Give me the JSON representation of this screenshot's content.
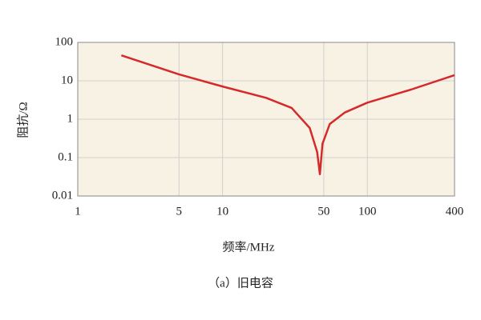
{
  "chart_data": {
    "type": "line",
    "x_label": "频率/MHz",
    "y_label": "阻抗/Ω",
    "caption": "（a）旧电容",
    "x": [
      2,
      5,
      10,
      20,
      30,
      40,
      45,
      47,
      49,
      55,
      70,
      100,
      200,
      400
    ],
    "series": [
      {
        "name": "旧电容",
        "color": "#d42a2a",
        "values": [
          46,
          14.7,
          7.1,
          3.6,
          1.96,
          0.59,
          0.14,
          0.037,
          0.23,
          0.75,
          1.5,
          2.7,
          5.9,
          14
        ]
      }
    ],
    "xlim": [
      1,
      400
    ],
    "xticks": [
      1,
      5,
      10,
      50,
      100,
      400
    ],
    "ylim": [
      0.01,
      100
    ],
    "yticks": [
      0.01,
      0.1,
      1,
      10,
      100
    ],
    "xscale": "log",
    "yscale": "log",
    "grid": true,
    "background": "#f8f2e4"
  }
}
